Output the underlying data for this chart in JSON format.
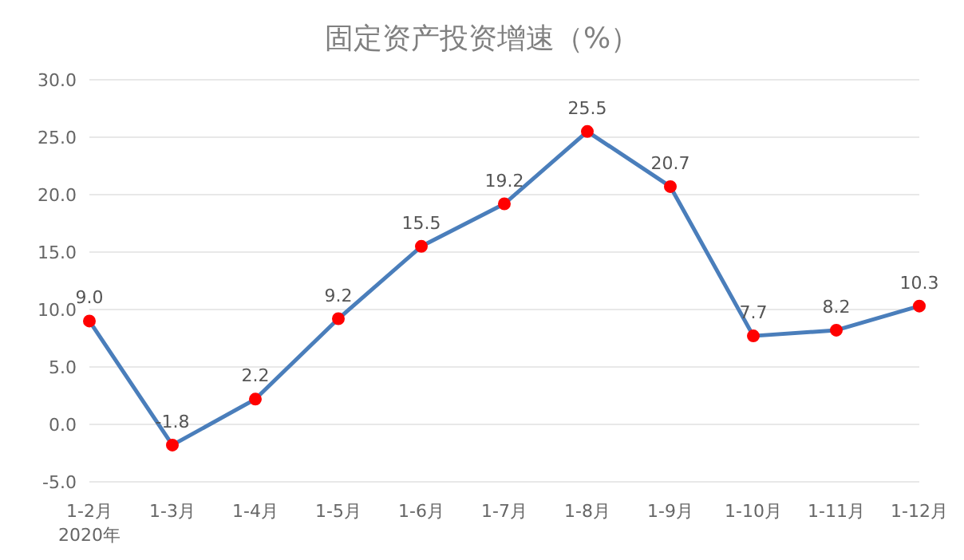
{
  "chart_data": {
    "type": "line",
    "title": "固定资产投资增速（%）",
    "categories": [
      "1-2月\n2020年",
      "1-3月",
      "1-4月",
      "1-5月",
      "1-6月",
      "1-7月",
      "1-8月",
      "1-9月",
      "1-10月",
      "1-11月",
      "1-12月"
    ],
    "series": [
      {
        "color": "#4a7ebb",
        "values": [
          9.0,
          -1.8,
          2.2,
          9.2,
          15.5,
          19.2,
          25.5,
          20.7,
          7.7,
          8.2,
          10.3
        ],
        "value_labels": [
          "9.0",
          "-1.8",
          "2.2",
          "9.2",
          "15.5",
          "19.2",
          "25.5",
          "20.7",
          "7.7",
          "8.2",
          "10.3"
        ]
      }
    ],
    "marker": "circle",
    "grid": "y",
    "ylim": [
      -5,
      30
    ],
    "yticks": [
      {
        "value": -5,
        "label": "-5.0"
      },
      {
        "value": 0,
        "label": "0.0"
      },
      {
        "value": 5,
        "label": "5.0"
      },
      {
        "value": 10,
        "label": "10.0"
      },
      {
        "value": 15,
        "label": "15.0"
      },
      {
        "value": 20,
        "label": "20.0"
      },
      {
        "value": 25,
        "label": "25.0"
      },
      {
        "value": 30,
        "label": "30.0"
      }
    ]
  }
}
